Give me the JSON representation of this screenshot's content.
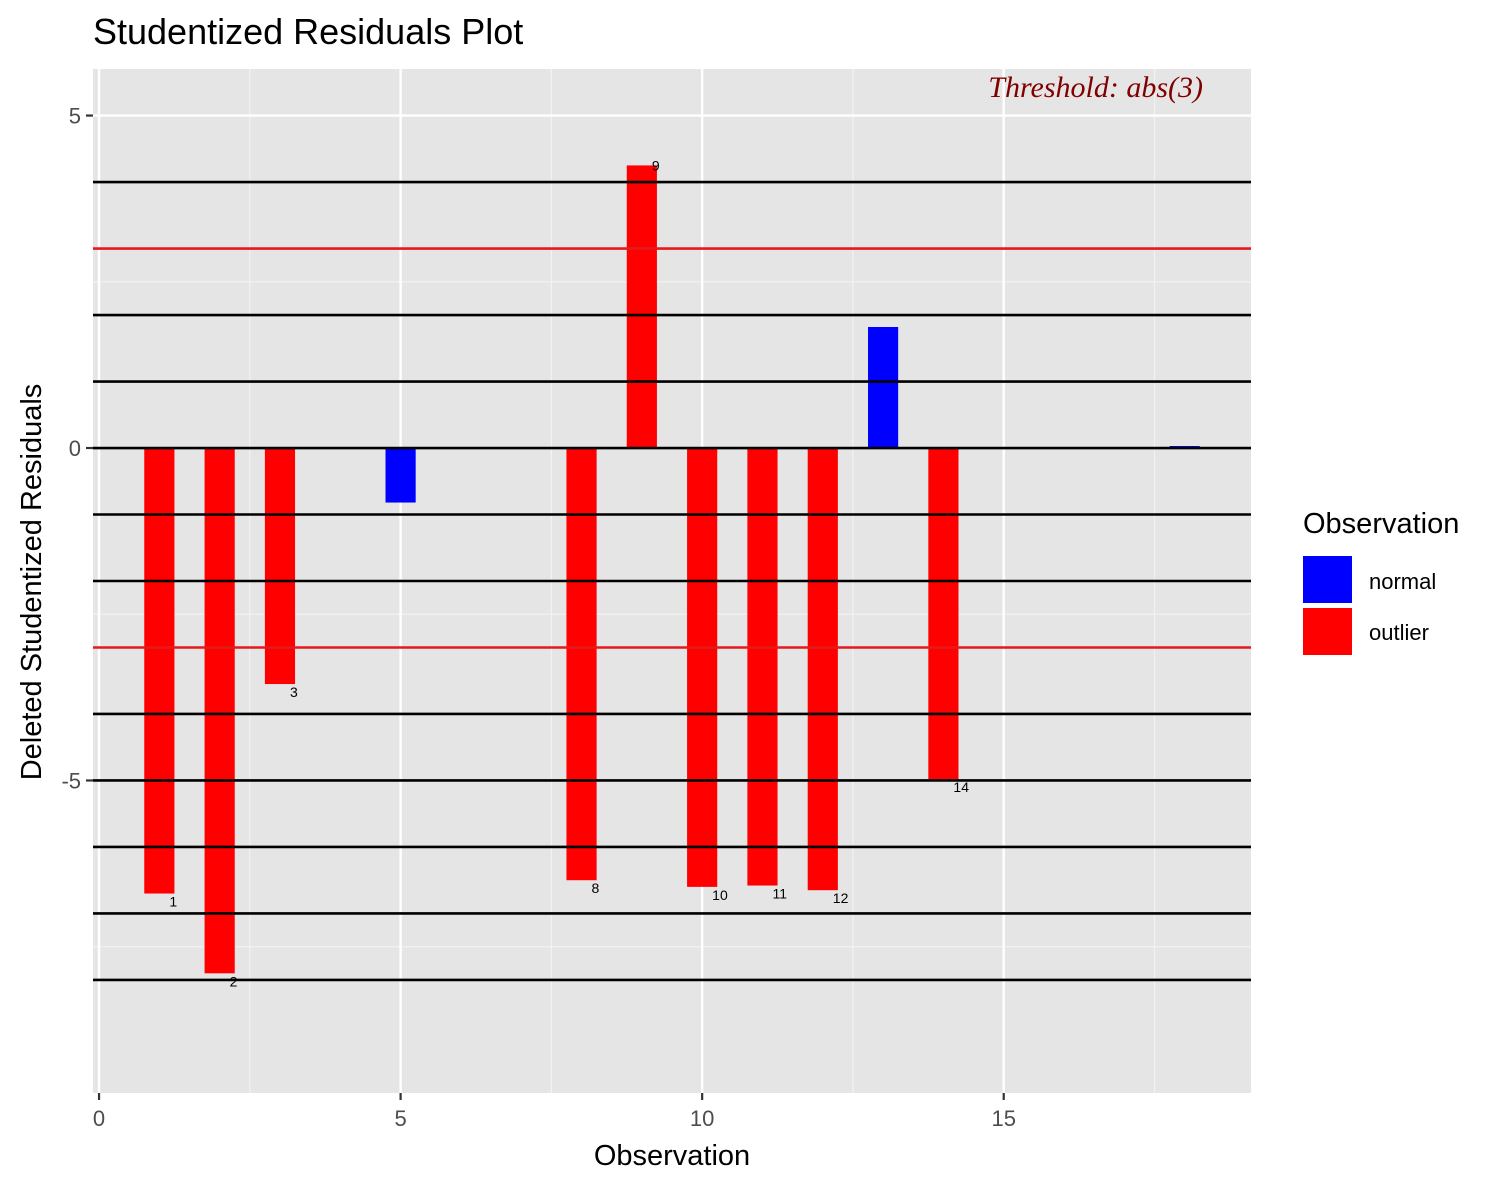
{
  "chart_data": {
    "type": "bar",
    "title": "Studentized Residuals Plot",
    "xlabel": "Observation",
    "ylabel": "Deleted Studentized Residuals",
    "xlim": [
      -0.1,
      19.1
    ],
    "ylim": [
      -9.7,
      5.7
    ],
    "x_ticks": [
      0,
      5,
      10,
      15
    ],
    "y_ticks": [
      -5,
      0,
      5
    ],
    "grid": true,
    "threshold": 3,
    "threshold_label": "Threshold: abs(3)",
    "reference_lines": [
      4,
      2,
      1,
      0,
      -1,
      -2,
      -4,
      -5,
      -6,
      -7,
      -8
    ],
    "legend": {
      "title": "Observation",
      "position": "right",
      "entries": [
        {
          "label": "normal",
          "color": "#0000ff"
        },
        {
          "label": "outlier",
          "color": "#ff0000"
        }
      ]
    },
    "colors": {
      "normal": "#0000ff",
      "outlier": "#ff0000",
      "threshold": "#e41a1c",
      "reference": "#000000",
      "annotation": "#800000"
    },
    "bars": [
      {
        "x": 1,
        "y": -6.7,
        "group": "outlier",
        "label": "1"
      },
      {
        "x": 2,
        "y": -7.9,
        "group": "outlier",
        "label": "2"
      },
      {
        "x": 3,
        "y": -3.55,
        "group": "outlier",
        "label": "3"
      },
      {
        "x": 5,
        "y": -0.82,
        "group": "normal",
        "label": ""
      },
      {
        "x": 8,
        "y": -6.5,
        "group": "outlier",
        "label": "8"
      },
      {
        "x": 9,
        "y": 4.25,
        "group": "outlier",
        "label": "9"
      },
      {
        "x": 10,
        "y": -6.6,
        "group": "outlier",
        "label": "10"
      },
      {
        "x": 11,
        "y": -6.58,
        "group": "outlier",
        "label": "11"
      },
      {
        "x": 12,
        "y": -6.65,
        "group": "outlier",
        "label": "12"
      },
      {
        "x": 13,
        "y": 1.82,
        "group": "normal",
        "label": ""
      },
      {
        "x": 14,
        "y": -4.98,
        "group": "outlier",
        "label": "14"
      },
      {
        "x": 18,
        "y": 0.03,
        "group": "normal",
        "label": ""
      }
    ]
  }
}
